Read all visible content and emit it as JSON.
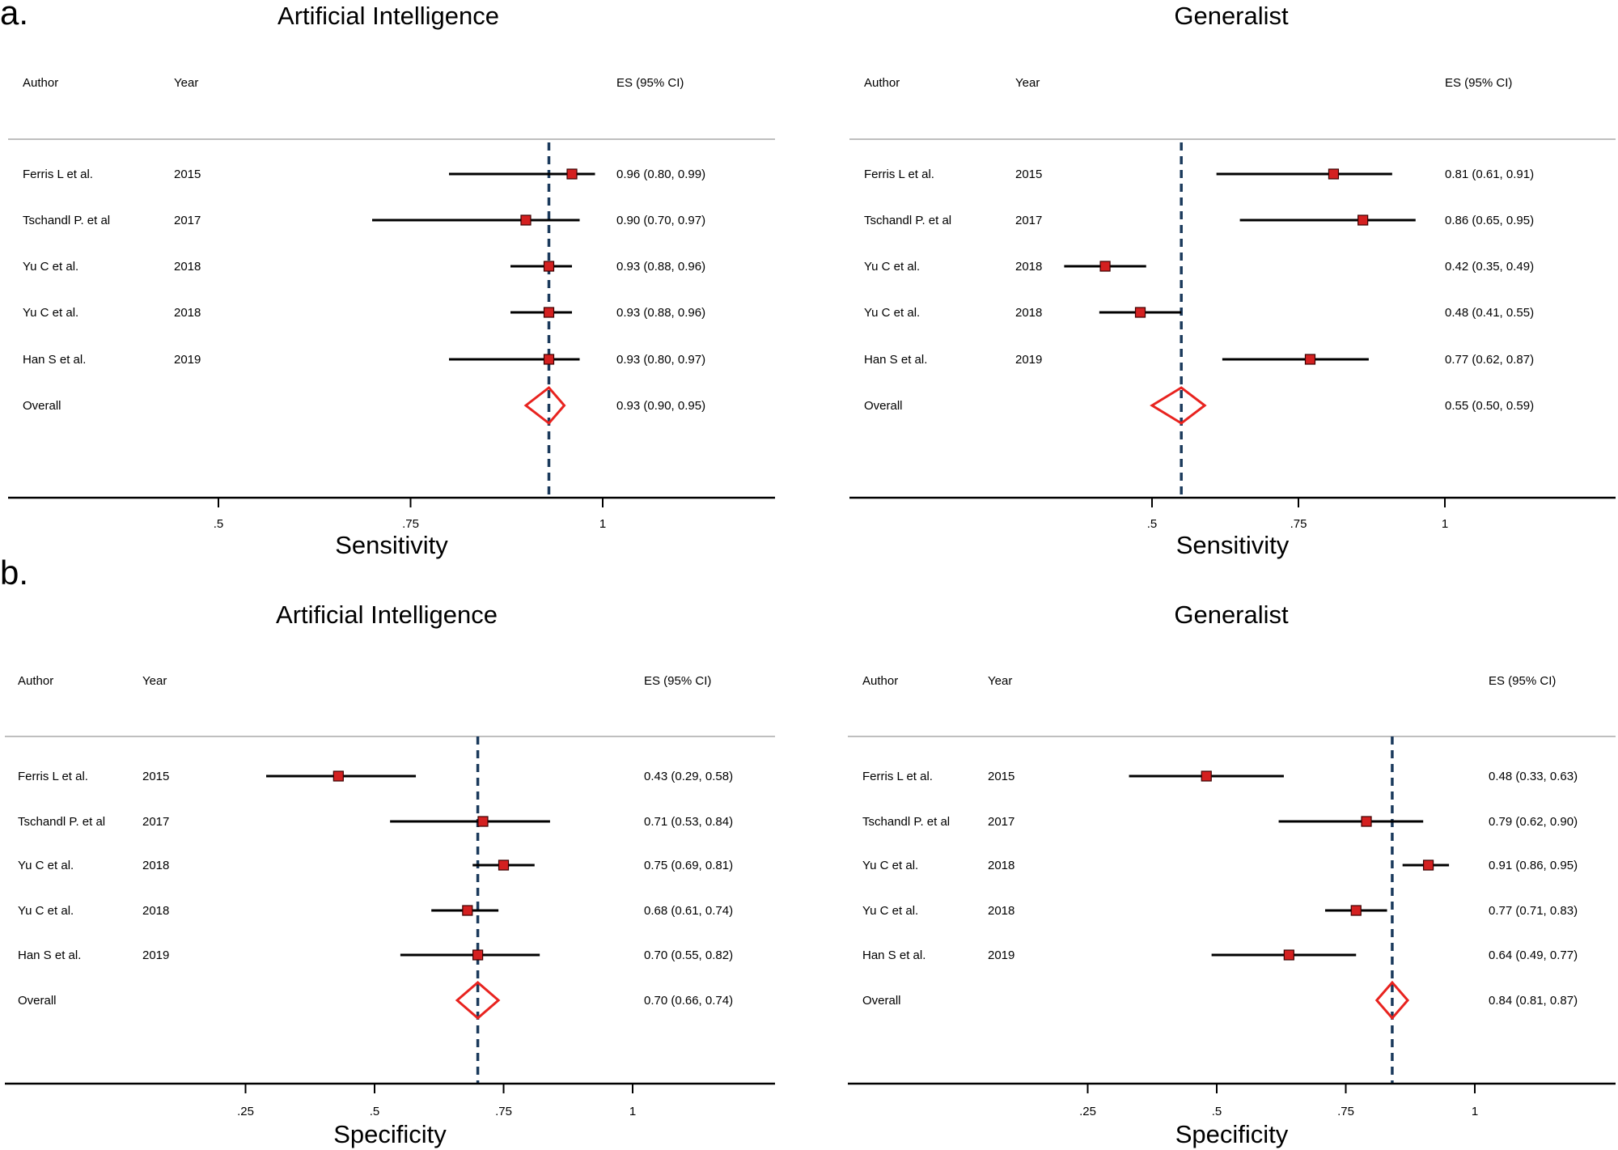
{
  "panels": {
    "a": {
      "letter": "a."
    },
    "b": {
      "letter": "b."
    }
  },
  "columns": {
    "author": "Author",
    "year": "Year",
    "es": "ES (95% CI)"
  },
  "overall_label": "Overall",
  "colors": {
    "marker": "#d42020",
    "diamond": "#e8231f",
    "ci_line": "#000000",
    "ref_line": "#1b3a5c",
    "divider": "#bfbfbf"
  },
  "chart_data": [
    {
      "type": "forest",
      "panel": "a",
      "title": "Artificial Intelligence",
      "xlabel": "Sensitivity",
      "ticks": [
        ".5",
        ".75",
        "1"
      ],
      "tick_values": [
        0.5,
        0.75,
        1
      ],
      "xlim": [
        0.235,
        1.11
      ],
      "ref_value": 0.93,
      "studies": [
        {
          "author": "Ferris L et al.",
          "year": "2015",
          "es": 0.96,
          "lo": 0.8,
          "hi": 0.99,
          "text": "0.96 (0.80, 0.99)"
        },
        {
          "author": "Tschandl P. et al",
          "year": "2017",
          "es": 0.9,
          "lo": 0.7,
          "hi": 0.97,
          "text": "0.90 (0.70, 0.97)"
        },
        {
          "author": "Yu C et al.",
          "year": "2018",
          "es": 0.93,
          "lo": 0.88,
          "hi": 0.96,
          "text": "0.93 (0.88, 0.96)"
        },
        {
          "author": "Yu C et al.",
          "year": "2018",
          "es": 0.93,
          "lo": 0.88,
          "hi": 0.96,
          "text": "0.93 (0.88, 0.96)"
        },
        {
          "author": "Han S et al.",
          "year": "2019",
          "es": 0.93,
          "lo": 0.8,
          "hi": 0.97,
          "text": "0.93 (0.80, 0.97)"
        }
      ],
      "overall": {
        "es": 0.93,
        "lo": 0.9,
        "hi": 0.95,
        "text": "0.93 (0.90, 0.95)"
      }
    },
    {
      "type": "forest",
      "panel": "a",
      "title": "Generalist",
      "xlabel": "Sensitivity",
      "ticks": [
        ".5",
        ".75",
        "1"
      ],
      "tick_values": [
        0.5,
        0.75,
        1
      ],
      "xlim": [
        0.0,
        1.3
      ],
      "ref_value": 0.55,
      "studies": [
        {
          "author": "Ferris L et al.",
          "year": "2015",
          "es": 0.81,
          "lo": 0.61,
          "hi": 0.91,
          "text": "0.81 (0.61, 0.91)"
        },
        {
          "author": "Tschandl P. et al",
          "year": "2017",
          "es": 0.86,
          "lo": 0.65,
          "hi": 0.95,
          "text": "0.86 (0.65, 0.95)"
        },
        {
          "author": "Yu C et al.",
          "year": "2018",
          "es": 0.42,
          "lo": 0.35,
          "hi": 0.49,
          "text": "0.42 (0.35, 0.49)"
        },
        {
          "author": "Yu C et al.",
          "year": "2018",
          "es": 0.48,
          "lo": 0.41,
          "hi": 0.55,
          "text": "0.48 (0.41, 0.55)"
        },
        {
          "author": "Han S et al.",
          "year": "2019",
          "es": 0.77,
          "lo": 0.62,
          "hi": 0.87,
          "text": "0.77 (0.62, 0.87)"
        }
      ],
      "overall": {
        "es": 0.55,
        "lo": 0.5,
        "hi": 0.59,
        "text": "0.55 (0.50, 0.59)"
      }
    },
    {
      "type": "forest",
      "panel": "b",
      "title": "Artificial Intelligence",
      "xlabel": "Specificity",
      "ticks": [
        ".25",
        ".5",
        ".75",
        "1"
      ],
      "tick_values": [
        0.25,
        0.5,
        0.75,
        1
      ],
      "xlim": [
        0.0,
        1.25
      ],
      "ref_value": 0.7,
      "studies": [
        {
          "author": "Ferris L et al.",
          "year": "2015",
          "es": 0.43,
          "lo": 0.29,
          "hi": 0.58,
          "text": "0.43 (0.29, 0.58)"
        },
        {
          "author": "Tschandl P. et al",
          "year": "2017",
          "es": 0.71,
          "lo": 0.53,
          "hi": 0.84,
          "text": "0.71 (0.53, 0.84)"
        },
        {
          "author": "Yu C et al.",
          "year": "2018",
          "es": 0.75,
          "lo": 0.69,
          "hi": 0.81,
          "text": "0.75 (0.69, 0.81)"
        },
        {
          "author": "Yu C et al.",
          "year": "2018",
          "es": 0.68,
          "lo": 0.61,
          "hi": 0.74,
          "text": "0.68 (0.61, 0.74)"
        },
        {
          "author": "Han S et al.",
          "year": "2019",
          "es": 0.7,
          "lo": 0.55,
          "hi": 0.82,
          "text": "0.70 (0.55, 0.82)"
        }
      ],
      "overall": {
        "es": 0.7,
        "lo": 0.66,
        "hi": 0.74,
        "text": "0.70 (0.66, 0.74)"
      }
    },
    {
      "type": "forest",
      "panel": "b",
      "title": "Generalist",
      "xlabel": "Specificity",
      "ticks": [
        ".25",
        ".5",
        ".75",
        "1"
      ],
      "tick_values": [
        0.25,
        0.5,
        0.75,
        1
      ],
      "xlim": [
        0.0,
        1.25
      ],
      "ref_value": 0.84,
      "studies": [
        {
          "author": "Ferris L et al.",
          "year": "2015",
          "es": 0.48,
          "lo": 0.33,
          "hi": 0.63,
          "text": "0.48 (0.33, 0.63)"
        },
        {
          "author": "Tschandl P. et al",
          "year": "2017",
          "es": 0.79,
          "lo": 0.62,
          "hi": 0.9,
          "text": "0.79 (0.62, 0.90)"
        },
        {
          "author": "Yu C et al.",
          "year": "2018",
          "es": 0.91,
          "lo": 0.86,
          "hi": 0.95,
          "text": "0.91 (0.86, 0.95)"
        },
        {
          "author": "Yu C et al.",
          "year": "2018",
          "es": 0.77,
          "lo": 0.71,
          "hi": 0.83,
          "text": "0.77 (0.71, 0.83)"
        },
        {
          "author": "Han S et al.",
          "year": "2019",
          "es": 0.64,
          "lo": 0.49,
          "hi": 0.77,
          "text": "0.64 (0.49, 0.77)"
        }
      ],
      "overall": {
        "es": 0.84,
        "lo": 0.81,
        "hi": 0.87,
        "text": "0.84 (0.81, 0.87)"
      }
    }
  ]
}
